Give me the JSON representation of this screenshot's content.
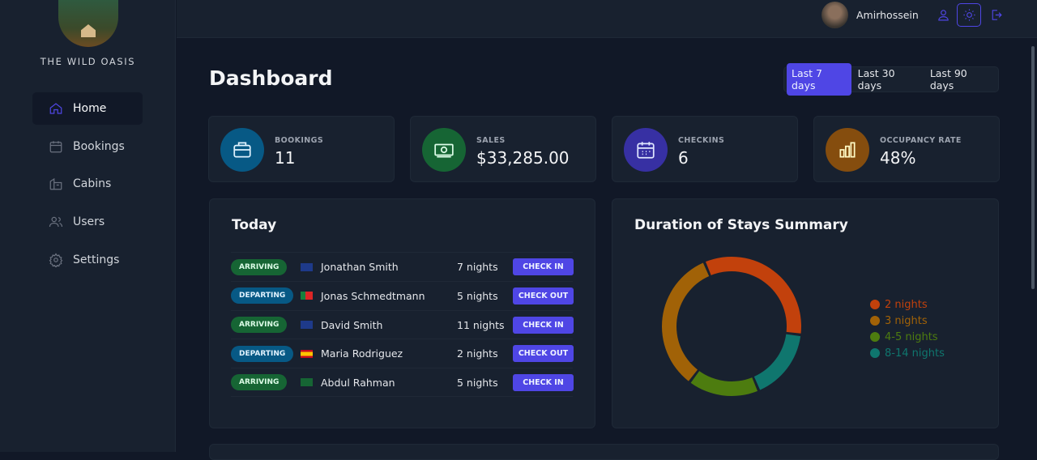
{
  "brand": {
    "name": "THE WILD OASIS"
  },
  "sidebar": {
    "items": [
      {
        "label": "Home",
        "icon": "home-icon",
        "active": true
      },
      {
        "label": "Bookings",
        "icon": "calendar-icon"
      },
      {
        "label": "Cabins",
        "icon": "cabin-icon"
      },
      {
        "label": "Users",
        "icon": "users-icon"
      },
      {
        "label": "Settings",
        "icon": "gear-icon"
      }
    ]
  },
  "header": {
    "user": "Amirhossein",
    "icons": [
      "user-icon",
      "sun-icon",
      "logout-icon"
    ]
  },
  "page": {
    "title": "Dashboard"
  },
  "filter": {
    "options": [
      "Last 7 days",
      "Last 30 days",
      "Last 90 days"
    ],
    "selected": "Last 7 days"
  },
  "stats": [
    {
      "label": "BOOKINGS",
      "value": "11",
      "color": "#075985",
      "icon": "briefcase-icon"
    },
    {
      "label": "SALES",
      "value": "$33,285.00",
      "color": "#166534",
      "icon": "banknotes-icon"
    },
    {
      "label": "CHECKINS",
      "value": "6",
      "color": "#3730a3",
      "icon": "calendar-days-icon"
    },
    {
      "label": "OCCUPANCY RATE",
      "value": "48%",
      "color": "#854d0e",
      "icon": "chart-bar-icon"
    }
  ],
  "today": {
    "title": "Today",
    "rows": [
      {
        "status": "ARRIVING",
        "country": "gb",
        "name": "Jonathan Smith",
        "nights": "7 nights",
        "action": "CHECK IN"
      },
      {
        "status": "DEPARTING",
        "country": "pt",
        "name": "Jonas Schmedtmann",
        "nights": "5 nights",
        "action": "CHECK OUT"
      },
      {
        "status": "ARRIVING",
        "country": "au",
        "name": "David Smith",
        "nights": "11 nights",
        "action": "CHECK IN"
      },
      {
        "status": "DEPARTING",
        "country": "es",
        "name": "Maria Rodriguez",
        "nights": "2 nights",
        "action": "CHECK OUT"
      },
      {
        "status": "ARRIVING",
        "country": "sa",
        "name": "Abdul Rahman",
        "nights": "5 nights",
        "action": "CHECK IN"
      }
    ]
  },
  "chart_data": {
    "type": "pie",
    "donut": true,
    "title": "Duration of Stays Summary",
    "legend_position": "right",
    "categories": [
      "2 nights",
      "3 nights",
      "4-5 nights",
      "8-14 nights"
    ],
    "values": [
      4,
      4,
      2,
      2
    ],
    "colors": [
      "#c2410c",
      "#a16207",
      "#4d7c0f",
      "#0f766e"
    ],
    "order_clockwise_from_top": [
      "2 nights",
      "8-14 nights",
      "4-5 nights",
      "3 nights"
    ]
  }
}
